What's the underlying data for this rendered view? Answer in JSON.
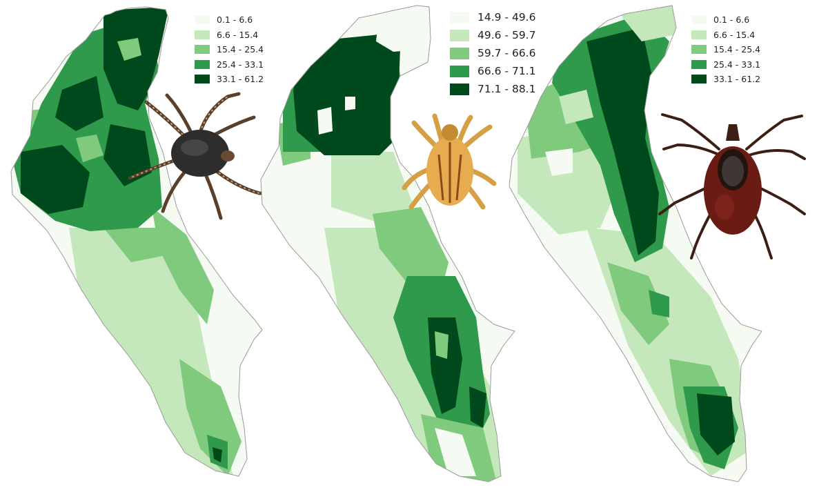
{
  "colors": {
    "class1": "#f5fbf2",
    "class2": "#c4e7bb",
    "class3": "#7fca7c",
    "class4": "#2f9a4c",
    "class5": "#00491c",
    "outline": "#9a9a9a"
  },
  "maps": [
    {
      "legend": [
        "0.1 - 6.6",
        "6.6 - 15.4",
        "15.4 - 25.4",
        "25.4 - 33.1",
        "33.1 - 61.2"
      ],
      "tick_icon": "hedgehog-tick-icon"
    },
    {
      "legend": [
        "14.9 - 49.6",
        "49.6 - 59.7",
        "59.7 - 66.6",
        "66.6 - 71.1",
        "71.1 - 88.1"
      ],
      "tick_icon": "golden-tick-icon"
    },
    {
      "legend": [
        "0.1 - 6.6",
        "6.6 - 15.4",
        "15.4 - 25.4",
        "25.4 - 33.1",
        "33.1 - 61.2"
      ],
      "tick_icon": "castor-bean-tick-icon"
    }
  ]
}
